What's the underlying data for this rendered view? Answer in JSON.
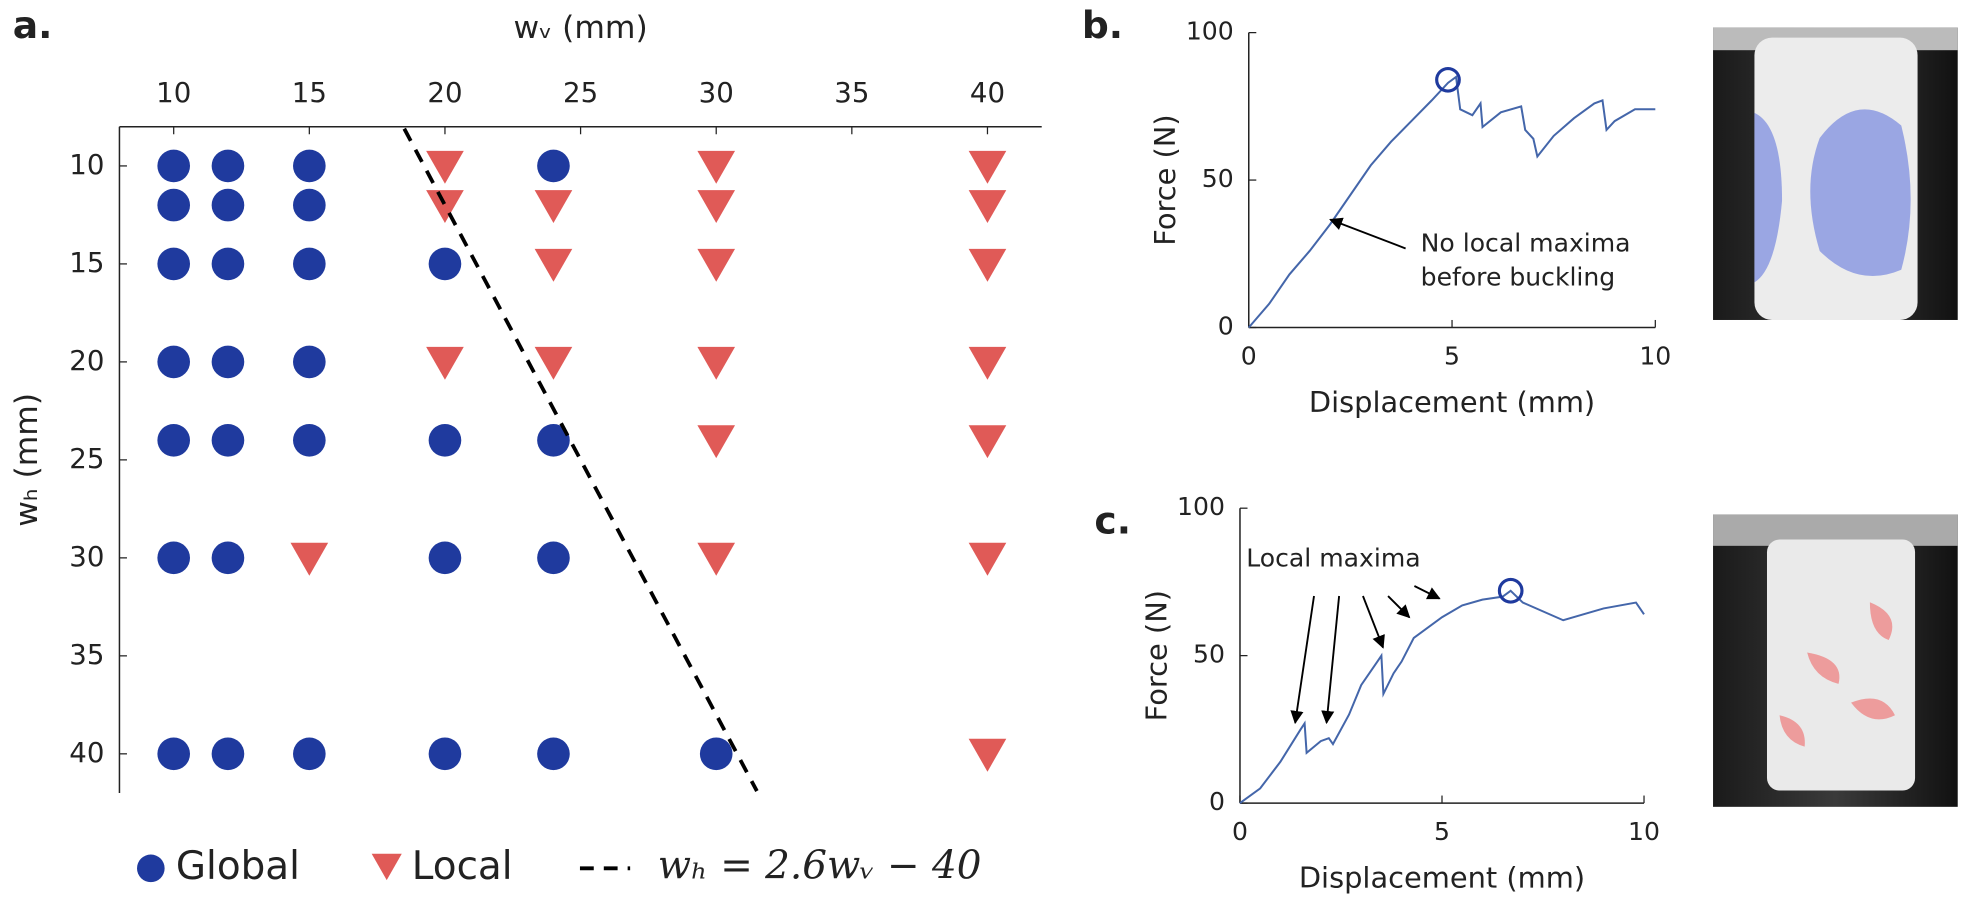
{
  "chart_data": [
    {
      "type": "scatter",
      "panel_label": "a.",
      "xlabel": "wᵥ (mm)",
      "ylabel": "wₕ (mm)",
      "xaxis_position": "top",
      "yinvert": true,
      "xlim": [
        8,
        42
      ],
      "ylim": [
        8,
        42
      ],
      "xticks": [
        10,
        15,
        20,
        25,
        30,
        35,
        40
      ],
      "yticks": [
        10,
        15,
        20,
        25,
        30,
        35,
        40
      ],
      "series": [
        {
          "name": "Global",
          "color": "#1f3a9e",
          "marker": "circle",
          "x": [
            10,
            12,
            15,
            24,
            10,
            12,
            15,
            10,
            12,
            15,
            20,
            10,
            12,
            15,
            10,
            12,
            15,
            20,
            24,
            10,
            12,
            20,
            24,
            10,
            12,
            15,
            20,
            24,
            30
          ],
          "y": [
            10,
            10,
            10,
            10,
            12,
            12,
            12,
            15,
            15,
            15,
            15,
            20,
            20,
            20,
            24,
            24,
            24,
            24,
            24,
            30,
            30,
            30,
            30,
            40,
            40,
            40,
            40,
            40,
            40
          ]
        },
        {
          "name": "Local",
          "color": "#e05a57",
          "marker": "triangle",
          "x": [
            20,
            30,
            40,
            20,
            24,
            30,
            40,
            24,
            30,
            40,
            20,
            24,
            30,
            40,
            30,
            40,
            15,
            30,
            40,
            40
          ],
          "y": [
            10,
            10,
            10,
            12,
            12,
            12,
            12,
            15,
            15,
            15,
            20,
            20,
            20,
            20,
            24,
            24,
            30,
            30,
            30,
            40
          ]
        },
        {
          "name": "wₕ = 2.6wᵥ − 40",
          "color": "#000000",
          "marker": "dashed",
          "x": [
            18.5,
            31.5
          ],
          "y": [
            8.1,
            41.9
          ]
        }
      ]
    },
    {
      "type": "line",
      "panel_label": "b.",
      "xlabel": "Displacement (mm)",
      "ylabel": "Force (N)",
      "xlim": [
        0,
        10
      ],
      "ylim": [
        0,
        100
      ],
      "xticks": [
        0,
        5,
        10
      ],
      "yticks": [
        0,
        50,
        100
      ],
      "color": "#4466aa",
      "x": [
        0,
        0.5,
        1,
        1.5,
        2,
        2.5,
        3,
        3.5,
        4,
        4.5,
        4.9,
        5.1,
        5.2,
        5.5,
        5.7,
        5.75,
        6.2,
        6.7,
        6.8,
        7,
        7.1,
        7.5,
        8,
        8.5,
        8.7,
        8.8,
        9,
        9.5,
        10
      ],
      "y": [
        0,
        8,
        18,
        26,
        35,
        45,
        55,
        63,
        70,
        77,
        83,
        85,
        74,
        72,
        76,
        68,
        73,
        75,
        67,
        64,
        58,
        65,
        71,
        76,
        77,
        67,
        70,
        74,
        74
      ],
      "peak": {
        "x": 4.9,
        "y": 84,
        "color": "#1f3a9e"
      },
      "annotation": [
        "No local maxima",
        "before buckling"
      ]
    },
    {
      "type": "line",
      "panel_label": "c.",
      "xlabel": "Displacement (mm)",
      "ylabel": "Force (N)",
      "xlim": [
        0,
        10
      ],
      "ylim": [
        0,
        100
      ],
      "xticks": [
        0,
        5,
        10
      ],
      "yticks": [
        0,
        50,
        100
      ],
      "color": "#4466aa",
      "x": [
        0,
        0.5,
        1,
        1.5,
        1.6,
        1.65,
        2,
        2.2,
        2.3,
        2.7,
        3,
        3.4,
        3.5,
        3.55,
        3.8,
        4,
        4.3,
        5,
        5.5,
        6,
        6.5,
        6.7,
        7,
        8,
        8.5,
        9,
        9.8,
        10
      ],
      "y": [
        0,
        5,
        14,
        25,
        27,
        17,
        21,
        22,
        20,
        30,
        40,
        48,
        50,
        37,
        44,
        48,
        56,
        63,
        67,
        69,
        70,
        72,
        68,
        62,
        64,
        66,
        68,
        64
      ],
      "peak": {
        "x": 6.7,
        "y": 72,
        "color": "#1f3a9e"
      },
      "annotation": [
        "Local maxima"
      ]
    }
  ]
}
